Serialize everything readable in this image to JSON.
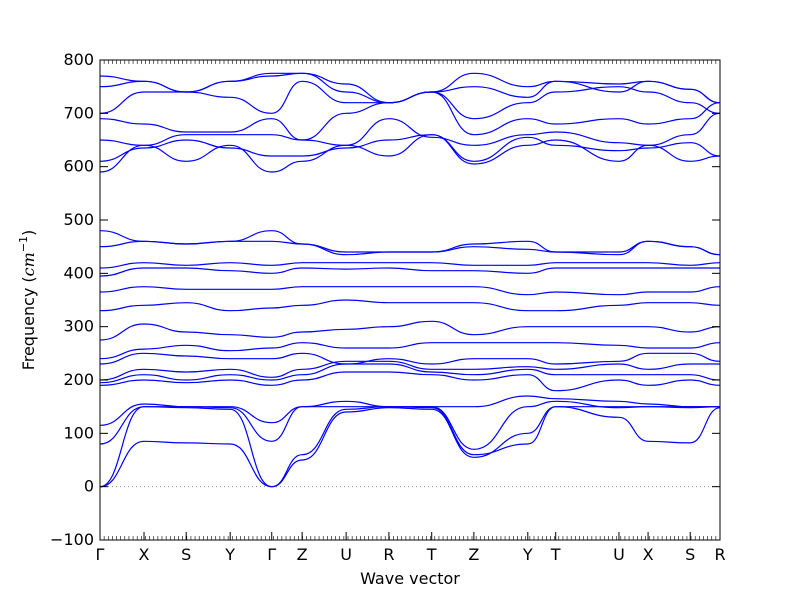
{
  "chart_data": {
    "type": "line",
    "title": "",
    "xlabel": "Wave vector",
    "ylabel": "Frequency ",
    "ylabel_unit_base": "cm",
    "ylabel_unit_exp": "−1",
    "ylim": [
      -100,
      800
    ],
    "yticks": [
      -100,
      0,
      100,
      200,
      300,
      400,
      500,
      600,
      700,
      800
    ],
    "grid": false,
    "line_color": "#0000ff",
    "zero_line": {
      "y": 0,
      "style": "dotted",
      "color": "#888888"
    },
    "high_symmetry_points": [
      {
        "label": "Γ",
        "x": 0.0
      },
      {
        "label": "X",
        "x": 0.071
      },
      {
        "label": "S",
        "x": 0.139
      },
      {
        "label": "Y",
        "x": 0.21
      },
      {
        "label": "Γ",
        "x": 0.277
      },
      {
        "label": "Z",
        "x": 0.326
      },
      {
        "label": "U",
        "x": 0.397
      },
      {
        "label": "R",
        "x": 0.466
      },
      {
        "label": "T",
        "x": 0.535
      },
      {
        "label": "Z",
        "x": 0.603
      },
      {
        "label": "Y",
        "x": 0.69
      },
      {
        "label": "T",
        "x": 0.735
      },
      {
        "label": "U",
        "x": 0.837
      },
      {
        "label": "X",
        "x": 0.884
      },
      {
        "label": "S",
        "x": 0.952
      },
      {
        "label": "R",
        "x": 1.0
      }
    ],
    "x": [
      0.0,
      0.071,
      0.139,
      0.21,
      0.277,
      0.326,
      0.397,
      0.466,
      0.535,
      0.603,
      0.69,
      0.735,
      0.837,
      0.884,
      0.952,
      1.0
    ],
    "series": [
      {
        "values": [
          0,
          85,
          82,
          80,
          0,
          50,
          140,
          148,
          145,
          55,
          100,
          150,
          130,
          85,
          82,
          148
        ]
      },
      {
        "values": [
          0,
          150,
          148,
          145,
          0,
          60,
          145,
          150,
          148,
          60,
          80,
          150,
          150,
          150,
          148,
          150
        ]
      },
      {
        "values": [
          80,
          150,
          150,
          148,
          85,
          150,
          150,
          150,
          150,
          70,
          150,
          160,
          148,
          150,
          150,
          150
        ]
      },
      {
        "values": [
          115,
          155,
          150,
          150,
          120,
          150,
          160,
          150,
          150,
          150,
          170,
          165,
          160,
          155,
          150,
          150
        ]
      },
      {
        "values": [
          190,
          200,
          195,
          200,
          190,
          200,
          215,
          215,
          210,
          200,
          210,
          180,
          200,
          190,
          200,
          190
        ]
      },
      {
        "values": [
          195,
          210,
          200,
          210,
          200,
          210,
          230,
          230,
          215,
          210,
          220,
          210,
          210,
          210,
          210,
          200
        ]
      },
      {
        "values": [
          200,
          220,
          215,
          220,
          205,
          220,
          235,
          235,
          220,
          220,
          225,
          220,
          230,
          220,
          230,
          230
        ]
      },
      {
        "values": [
          230,
          250,
          245,
          240,
          240,
          250,
          230,
          240,
          230,
          240,
          240,
          230,
          235,
          250,
          250,
          235
        ]
      },
      {
        "values": [
          240,
          258,
          265,
          255,
          260,
          270,
          260,
          260,
          270,
          270,
          270,
          270,
          265,
          260,
          260,
          270
        ]
      },
      {
        "values": [
          275,
          305,
          290,
          285,
          280,
          290,
          295,
          300,
          310,
          285,
          300,
          300,
          300,
          300,
          290,
          300
        ]
      },
      {
        "values": [
          330,
          340,
          345,
          330,
          335,
          340,
          350,
          345,
          345,
          345,
          330,
          330,
          340,
          345,
          345,
          340
        ]
      },
      {
        "values": [
          365,
          375,
          370,
          370,
          370,
          375,
          375,
          375,
          375,
          375,
          360,
          365,
          360,
          365,
          365,
          375
        ]
      },
      {
        "values": [
          395,
          410,
          410,
          405,
          400,
          410,
          408,
          410,
          405,
          405,
          400,
          410,
          410,
          410,
          410,
          410
        ]
      },
      {
        "values": [
          410,
          420,
          415,
          420,
          415,
          420,
          420,
          420,
          420,
          415,
          415,
          420,
          420,
          420,
          415,
          420
        ]
      },
      {
        "values": [
          450,
          460,
          455,
          460,
          460,
          455,
          435,
          440,
          440,
          455,
          460,
          440,
          440,
          460,
          450,
          435
        ]
      },
      {
        "values": [
          480,
          460,
          455,
          460,
          480,
          455,
          440,
          440,
          440,
          450,
          445,
          440,
          435,
          460,
          450,
          435
        ]
      },
      {
        "values": [
          590,
          640,
          610,
          640,
          590,
          610,
          640,
          620,
          660,
          605,
          640,
          650,
          610,
          640,
          610,
          620
        ]
      },
      {
        "values": [
          610,
          635,
          650,
          635,
          620,
          620,
          635,
          650,
          660,
          610,
          655,
          640,
          630,
          635,
          645,
          620
        ]
      },
      {
        "values": [
          650,
          640,
          660,
          660,
          660,
          650,
          640,
          690,
          655,
          640,
          660,
          665,
          645,
          640,
          660,
          700
        ]
      },
      {
        "values": [
          690,
          680,
          665,
          665,
          690,
          650,
          700,
          720,
          740,
          660,
          690,
          680,
          690,
          680,
          690,
          720
        ]
      },
      {
        "values": [
          700,
          740,
          740,
          730,
          700,
          760,
          720,
          720,
          740,
          690,
          720,
          740,
          750,
          740,
          720,
          700
        ]
      },
      {
        "values": [
          750,
          760,
          740,
          760,
          770,
          775,
          740,
          720,
          740,
          750,
          730,
          760,
          740,
          760,
          745,
          720
        ]
      },
      {
        "values": [
          770,
          760,
          740,
          760,
          775,
          775,
          755,
          720,
          740,
          775,
          750,
          760,
          755,
          760,
          745,
          720
        ]
      }
    ]
  }
}
